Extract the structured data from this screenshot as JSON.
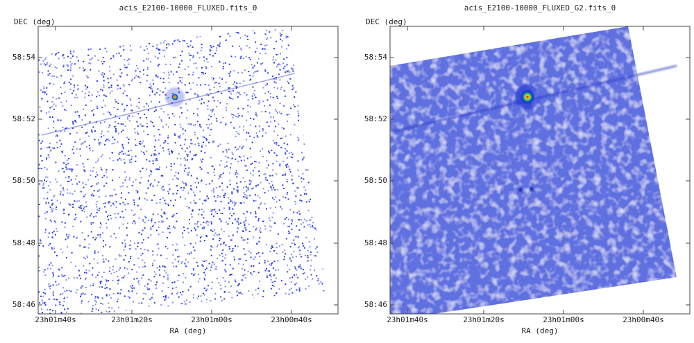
{
  "panels": [
    {
      "title": "acis_E2100-10000_FLUXED.fits_0",
      "y_label": "DEC (deg)",
      "x_label": "RA (deg)",
      "y_ticks": [
        "58:54",
        "58:52",
        "58:50",
        "58:48",
        "58:46"
      ],
      "x_ticks": [
        "23h01m40s",
        "23h01m20s",
        "23h01m00s",
        "23h00m40s"
      ]
    },
    {
      "title": "acis_E2100-10000_FLUXED_G2.fits_0",
      "y_label": "DEC (deg)",
      "x_label": "RA (deg)",
      "y_ticks": [
        "58:54",
        "58:52",
        "58:50",
        "58:48",
        "58:46"
      ],
      "x_ticks": [
        "23h01m40s",
        "23h01m20s",
        "23h01m00s",
        "23h00m40s"
      ]
    }
  ]
}
